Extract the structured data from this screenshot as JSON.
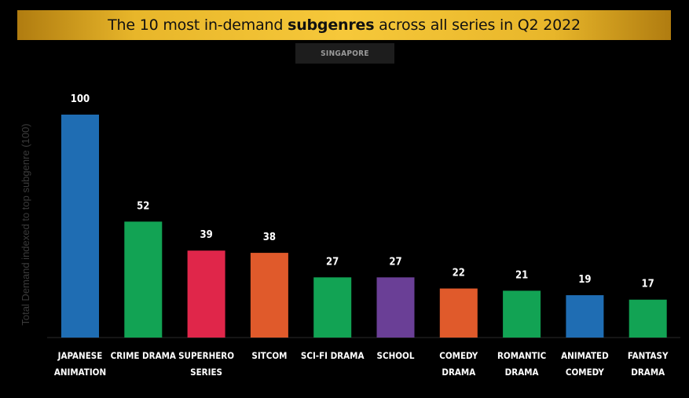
{
  "title": {
    "prefix": "The 10 most in-demand ",
    "bold": "subgenres",
    "suffix": " across all series in Q2 2022"
  },
  "region": "SINGAPORE",
  "chart_data": {
    "type": "bar",
    "categories": [
      [
        "JAPANESE",
        "ANIMATION"
      ],
      [
        "CRIME DRAMA"
      ],
      [
        "SUPERHERO",
        "SERIES"
      ],
      [
        "SITCOM"
      ],
      [
        "SCI-FI DRAMA"
      ],
      [
        "SCHOOL"
      ],
      [
        "COMEDY",
        "DRAMA"
      ],
      [
        "ROMANTIC",
        "DRAMA"
      ],
      [
        "ANIMATED",
        "COMEDY"
      ],
      [
        "FANTASY",
        "DRAMA"
      ]
    ],
    "values": [
      100,
      52,
      39,
      38,
      27,
      27,
      22,
      21,
      19,
      17
    ],
    "colors": [
      "#1f6db3",
      "#12a354",
      "#e0264a",
      "#e05a2b",
      "#12a354",
      "#6a3f96",
      "#e05a2b",
      "#12a354",
      "#1f6db3",
      "#12a354"
    ],
    "ylabel": "Total Demand indexed to top subgenre (100)",
    "ylim": [
      0,
      100
    ],
    "grid": false,
    "data_labels": true
  }
}
